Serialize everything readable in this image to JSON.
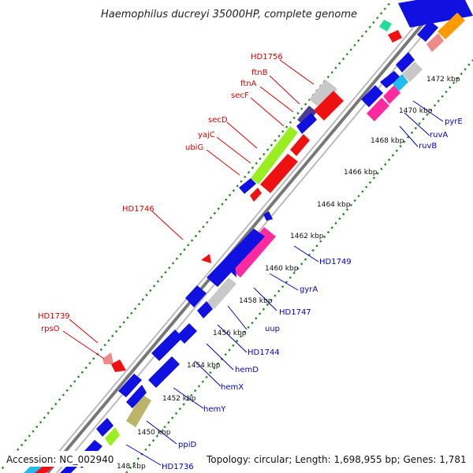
{
  "title": "Haemophilus ducreyi 35000HP, complete genome",
  "footer": {
    "accession": "Accession: NC_002940",
    "summary": "Topology: circular; Length: 1,698,955 bp; Genes: 1,781"
  },
  "ticks": [
    "148 kbp",
    "1450 kbp",
    "1452 kbp",
    "1454 kbp",
    "1456 kbp",
    "1458 kbp",
    "1460 kbp",
    "1462 kbp",
    "1464 kbp",
    "1466 kbp",
    "1468 kbp",
    "1470 kbp",
    "1472 kbp"
  ],
  "labels_forward": [
    "HD1756",
    "ftnB",
    "ftnA",
    "secF",
    "secD",
    "yajC",
    "ubiG",
    "HD1746",
    "HD1739",
    "rpsO"
  ],
  "labels_reverse": [
    "pyrE",
    "ruvA",
    "ruvB",
    "HD1749",
    "gyrA",
    "HD1747",
    "uup",
    "HD1744",
    "hemD",
    "hemX",
    "hemY",
    "ppiD",
    "HD1736"
  ],
  "colors": {
    "forward_label": "#dd0000",
    "reverse_label": "#0000cc",
    "gene_blue": "#1010e0",
    "gene_red": "#ee1111",
    "gene_pink": "#ff2aa0",
    "gene_green": "#99ee22",
    "gene_gray": "#c8c8c8",
    "gene_olive": "#bdb46c",
    "gene_purple": "#4b3d8f",
    "gene_cyan": "#22bbee",
    "gene_salmon": "#f08a8a",
    "gene_teal": "#22dd99",
    "gene_orange": "#ff9900",
    "backbone": "#888888",
    "tick_marks": "#227722"
  }
}
